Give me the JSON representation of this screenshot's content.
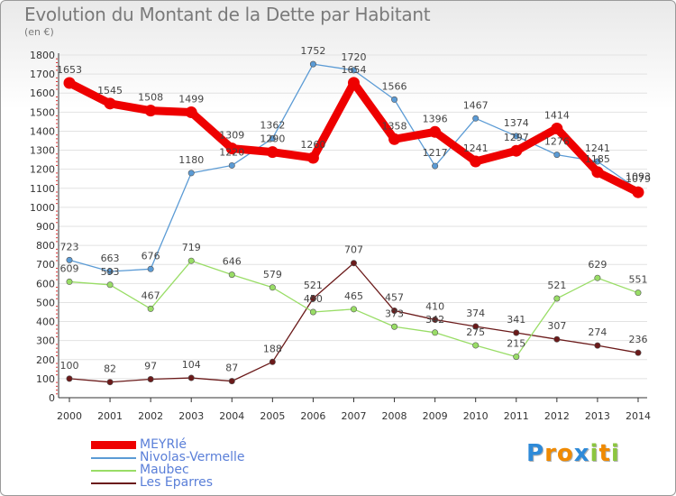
{
  "title": "Evolution du Montant de la Dette par Habitant",
  "subtitle": "(en €)",
  "chart_data": {
    "type": "line",
    "title": "Evolution du Montant de la Dette par Habitant",
    "subtitle": "(en €)",
    "categories": [
      "2000",
      "2001",
      "2002",
      "2003",
      "2004",
      "2005",
      "2006",
      "2007",
      "2008",
      "2009",
      "2010",
      "2011",
      "2012",
      "2013",
      "2014"
    ],
    "ylim": [
      0,
      1800
    ],
    "yticks": [
      0,
      100,
      200,
      300,
      400,
      500,
      600,
      700,
      800,
      900,
      1000,
      1100,
      1200,
      1300,
      1400,
      1500,
      1600,
      1700,
      1800
    ],
    "grid": true,
    "legend_position": "bottom-left",
    "series": [
      {
        "name": "MEYRIé",
        "color": "#ee0000",
        "values": [
          1653,
          1545,
          1508,
          1499,
          1309,
          1290,
          1260,
          1654,
          1358,
          1396,
          1241,
          1297,
          1414,
          1185,
          1079
        ]
      },
      {
        "name": "Nivolas-Vermelle",
        "color": "#5b9bd5",
        "values": [
          723,
          663,
          676,
          1180,
          1220,
          1362,
          1752,
          1720,
          1566,
          1217,
          1467,
          1374,
          1276,
          1241,
          1093
        ]
      },
      {
        "name": "Maubec",
        "color": "#99dd66",
        "values": [
          609,
          593,
          467,
          719,
          646,
          579,
          450,
          465,
          373,
          342,
          275,
          215,
          521,
          629,
          551
        ]
      },
      {
        "name": "Les Eparres",
        "color": "#6b1a1a",
        "values": [
          100,
          82,
          97,
          104,
          87,
          188,
          521,
          707,
          457,
          410,
          374,
          341,
          307,
          274,
          236
        ]
      }
    ]
  },
  "logo": {
    "text": "Proxiti",
    "letters": [
      "P",
      "r",
      "o",
      "x",
      "i",
      "t",
      "i"
    ],
    "colors": [
      "#2e8ad8",
      "#f08a00",
      "#f08a00",
      "#2e8ad8",
      "#8cc63f",
      "#f08a00",
      "#8cc63f"
    ]
  }
}
